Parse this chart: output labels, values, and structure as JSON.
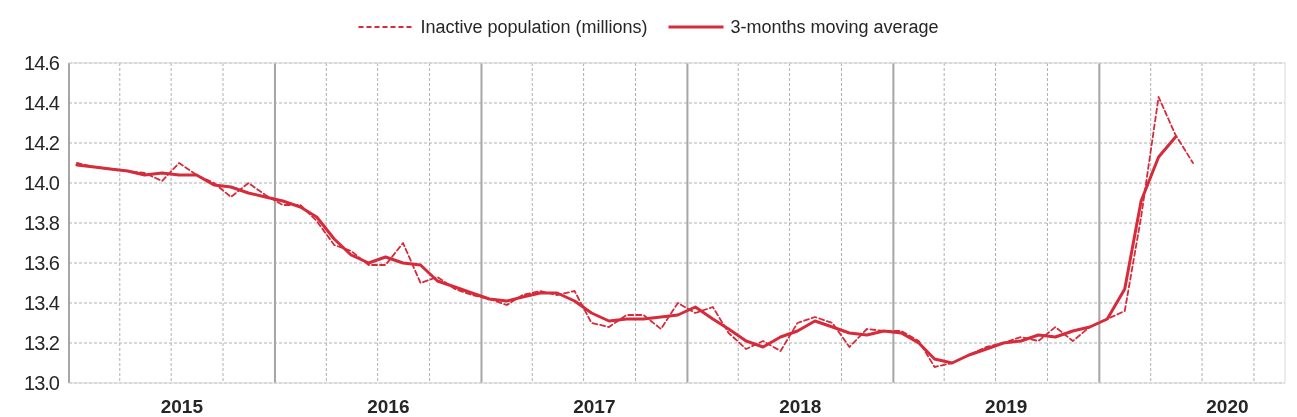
{
  "chart_data": {
    "type": "line",
    "x": [
      "2015-01-15",
      "2015-02-15",
      "2015-03-15",
      "2015-04-15",
      "2015-05-15",
      "2015-06-15",
      "2015-07-15",
      "2015-08-15",
      "2015-09-15",
      "2015-10-15",
      "2015-11-15",
      "2015-12-15",
      "2016-01-15",
      "2016-02-15",
      "2016-03-15",
      "2016-04-15",
      "2016-05-15",
      "2016-06-15",
      "2016-07-15",
      "2016-08-15",
      "2016-09-15",
      "2016-10-15",
      "2016-11-15",
      "2016-12-15",
      "2017-01-15",
      "2017-02-15",
      "2017-03-15",
      "2017-04-15",
      "2017-05-15",
      "2017-06-15",
      "2017-07-15",
      "2017-08-15",
      "2017-09-15",
      "2017-10-15",
      "2017-11-15",
      "2017-12-15",
      "2018-01-15",
      "2018-02-15",
      "2018-03-15",
      "2018-04-15",
      "2018-05-15",
      "2018-06-15",
      "2018-07-15",
      "2018-08-15",
      "2018-09-15",
      "2018-10-15",
      "2018-11-15",
      "2018-12-15",
      "2019-01-15",
      "2019-02-15",
      "2019-03-15",
      "2019-04-15",
      "2019-05-15",
      "2019-06-15",
      "2019-07-15",
      "2019-08-15",
      "2019-09-15",
      "2019-10-15",
      "2019-11-15",
      "2019-12-15",
      "2020-01-15",
      "2020-02-15",
      "2020-03-15",
      "2020-04-15",
      "2020-05-15",
      "2020-06-15"
    ],
    "series": [
      {
        "name": "Inactive population (millions)",
        "color": "#d52b3a",
        "line_style": "dashed",
        "values": [
          14.1,
          14.08,
          14.07,
          14.06,
          14.05,
          14.01,
          14.1,
          14.04,
          14.0,
          13.93,
          14.0,
          13.94,
          13.89,
          13.89,
          13.81,
          13.69,
          13.66,
          13.59,
          13.59,
          13.7,
          13.5,
          13.53,
          13.47,
          13.44,
          13.42,
          13.39,
          13.44,
          13.46,
          13.44,
          13.46,
          13.3,
          13.28,
          13.34,
          13.34,
          13.27,
          13.4,
          13.35,
          13.38,
          13.25,
          13.17,
          13.21,
          13.16,
          13.3,
          13.33,
          13.3,
          13.18,
          13.27,
          13.26,
          13.26,
          13.21,
          13.08,
          13.1,
          13.14,
          13.18,
          13.2,
          13.23,
          13.21,
          13.28,
          13.21,
          13.28,
          13.32,
          13.36,
          13.83,
          14.43,
          14.24,
          14.1
        ]
      },
      {
        "name": "3-months moving average",
        "color": "#d52b3a",
        "line_style": "solid",
        "values": [
          14.09,
          14.08,
          14.07,
          14.06,
          14.04,
          14.05,
          14.04,
          14.04,
          13.99,
          13.98,
          13.95,
          13.93,
          13.91,
          13.88,
          13.83,
          13.72,
          13.64,
          13.6,
          13.63,
          13.6,
          13.59,
          13.51,
          13.48,
          13.45,
          13.42,
          13.41,
          13.43,
          13.45,
          13.45,
          13.41,
          13.35,
          13.31,
          13.32,
          13.32,
          13.33,
          13.34,
          13.38,
          13.32,
          13.27,
          13.21,
          13.18,
          13.23,
          13.26,
          13.31,
          13.28,
          13.25,
          13.24,
          13.26,
          13.25,
          13.2,
          13.12,
          13.1,
          13.14,
          13.17,
          13.2,
          13.21,
          13.24,
          13.23,
          13.26,
          13.28,
          13.32,
          13.47,
          13.91,
          14.13,
          14.23,
          null
        ]
      }
    ],
    "xlim": [
      "2015-01-01",
      "2020-11-25"
    ],
    "xticks": [
      {
        "value": "2015-07-20",
        "label": "2015"
      },
      {
        "value": "2016-01-01",
        "label": null
      },
      {
        "value": "2016-07-20",
        "label": "2016"
      },
      {
        "value": "2017-01-01",
        "label": null
      },
      {
        "value": "2017-07-20",
        "label": "2017"
      },
      {
        "value": "2018-01-01",
        "label": null
      },
      {
        "value": "2018-07-20",
        "label": "2018"
      },
      {
        "value": "2019-01-01",
        "label": null
      },
      {
        "value": "2019-07-20",
        "label": "2019"
      },
      {
        "value": "2020-01-01",
        "label": null
      },
      {
        "value": "2020-08-15",
        "label": "2020"
      }
    ],
    "ylim": [
      13.0,
      14.6
    ],
    "yticks": [
      {
        "value": 13.0,
        "label": "13.0"
      },
      {
        "value": 13.2,
        "label": "13.2"
      },
      {
        "value": 13.4,
        "label": "13.4"
      },
      {
        "value": 13.6,
        "label": "13.6"
      },
      {
        "value": 13.8,
        "label": "13.8"
      },
      {
        "value": 14.0,
        "label": "14.0"
      },
      {
        "value": 14.2,
        "label": "14.2"
      },
      {
        "value": 14.4,
        "label": "14.4"
      },
      {
        "value": 14.6,
        "label": "14.6"
      }
    ],
    "grid": true,
    "legend": "top",
    "marker": "none"
  }
}
